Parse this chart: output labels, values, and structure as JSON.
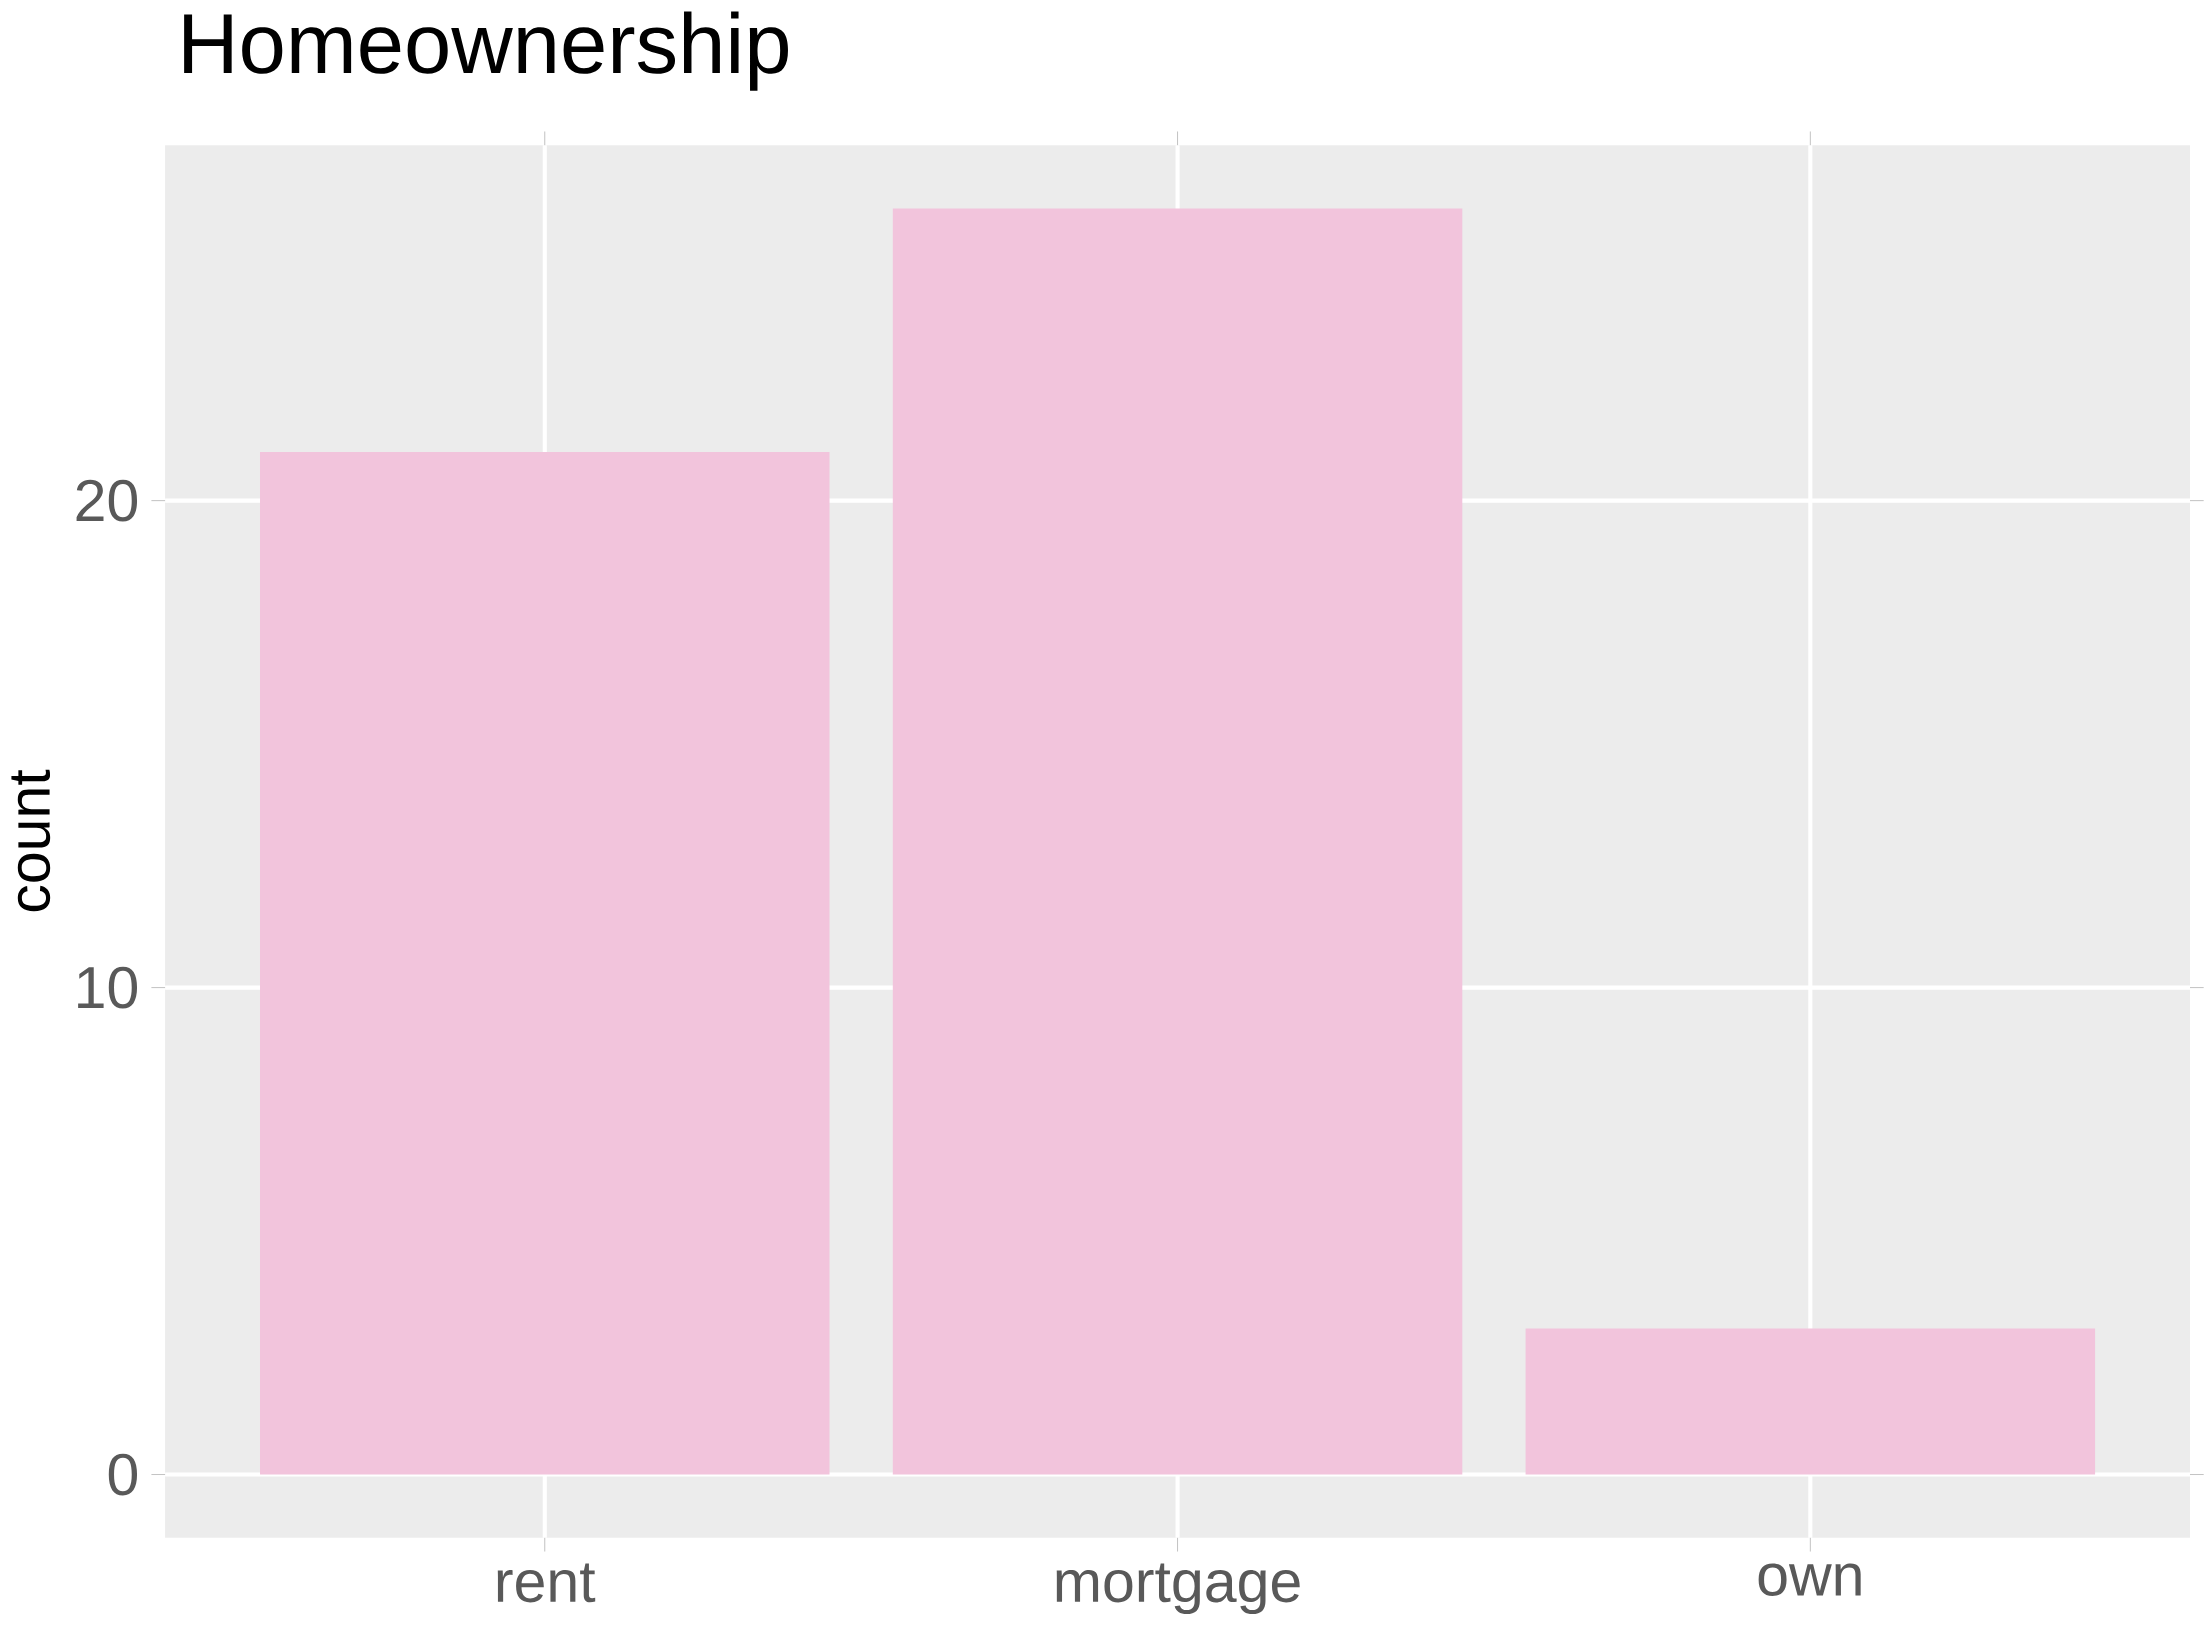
{
  "chart_data": {
    "type": "bar",
    "title": "Homeownership",
    "ylabel": "count",
    "categories": [
      "rent",
      "mortgage",
      "own"
    ],
    "values": [
      21,
      26,
      3
    ],
    "color": "#f2c4dc",
    "ylim": [
      -1.3,
      27.3
    ],
    "yticks": [
      0,
      10,
      20
    ],
    "grid": true
  }
}
